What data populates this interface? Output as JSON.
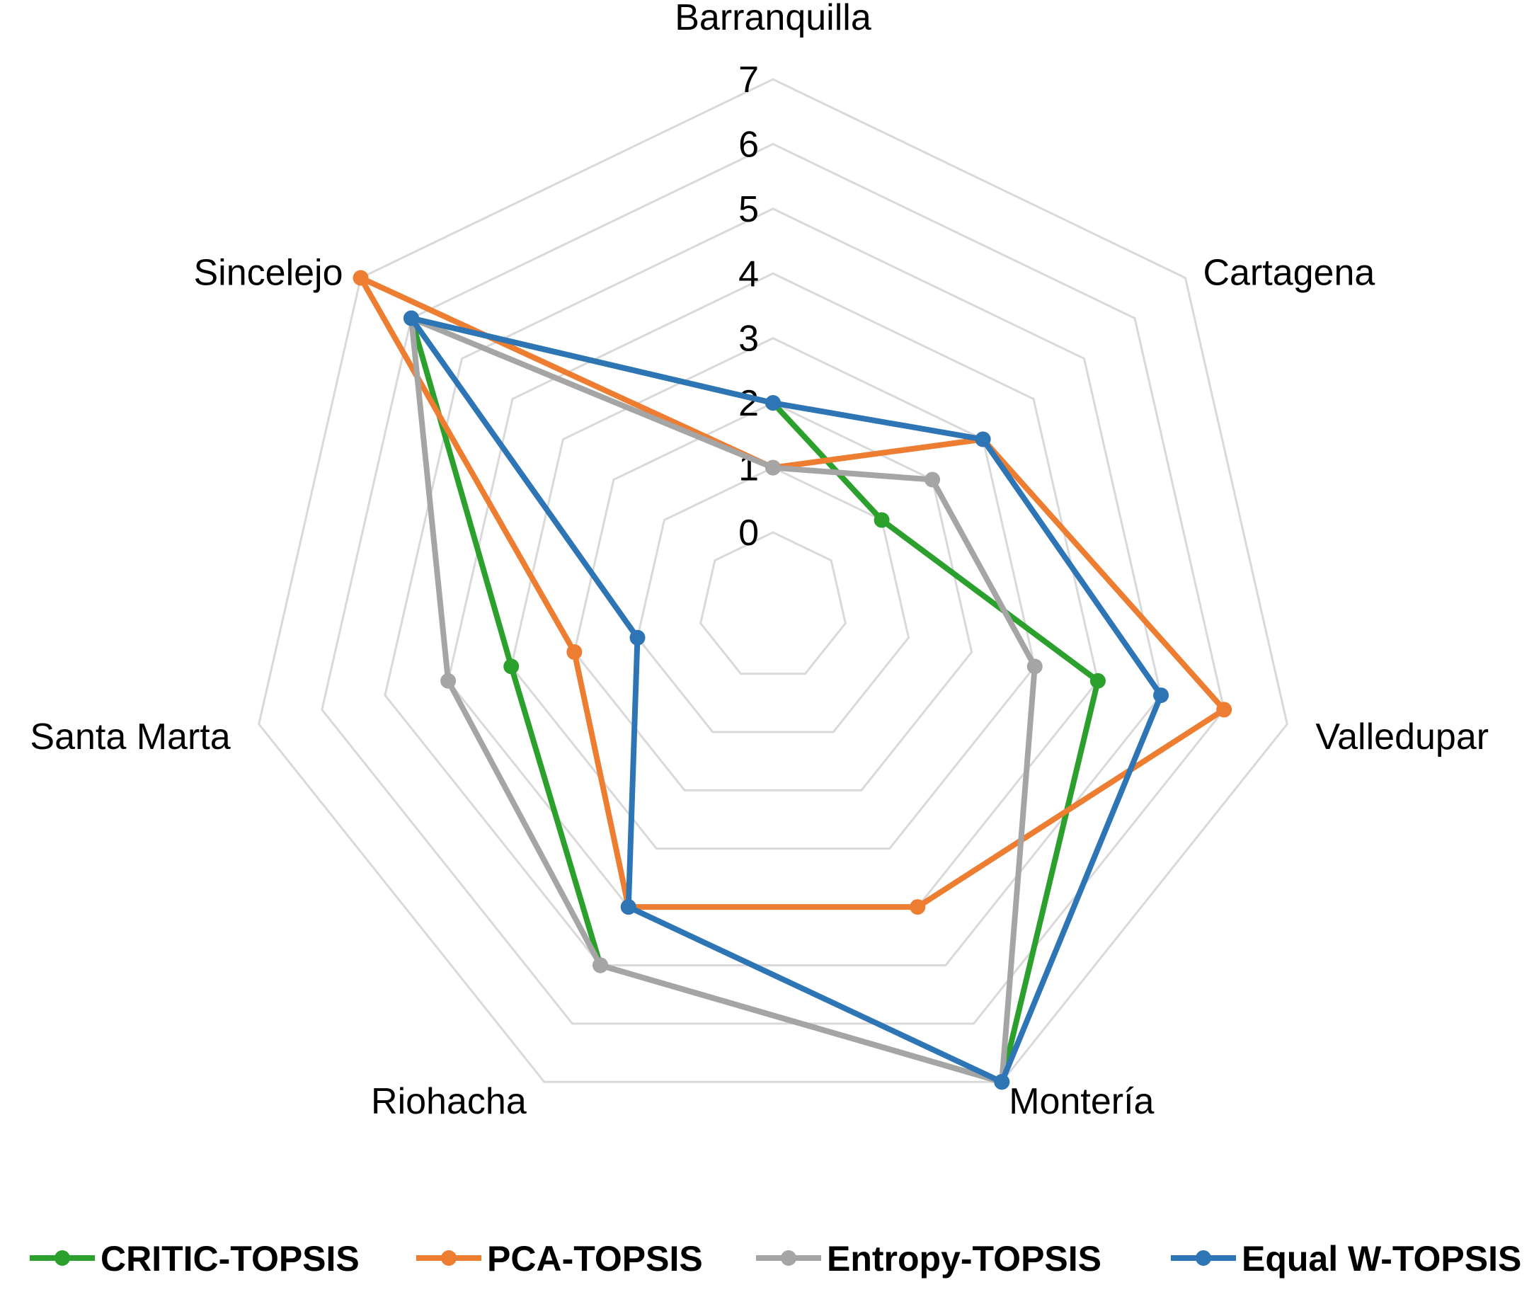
{
  "chart_data": {
    "type": "radar",
    "categories": [
      "Barranquilla",
      "Cartagena",
      "Valledupar",
      "Montería",
      "Riohacha",
      "Santa Marta",
      "Sincelejo"
    ],
    "ticks": [
      "0",
      "1",
      "2",
      "3",
      "4",
      "5",
      "6",
      "7"
    ],
    "rlim": [
      0,
      7
    ],
    "grid": true,
    "legend_position": "bottom",
    "series": [
      {
        "name": "CRITIC-TOPSIS",
        "color": "#2ca02c",
        "values": [
          2,
          1,
          4,
          7,
          5,
          3,
          6
        ]
      },
      {
        "name": "PCA-TOPSIS",
        "color": "#ed7d31",
        "values": [
          1,
          3,
          6,
          4,
          4,
          2,
          7
        ]
      },
      {
        "name": "Entropy-TOPSIS",
        "color": "#a5a5a5",
        "values": [
          1,
          2,
          3,
          7,
          5,
          4,
          6
        ]
      },
      {
        "name": "Equal W-TOPSIS",
        "color": "#2e75b6",
        "values": [
          2,
          3,
          5,
          7,
          4,
          1,
          6
        ]
      }
    ]
  }
}
